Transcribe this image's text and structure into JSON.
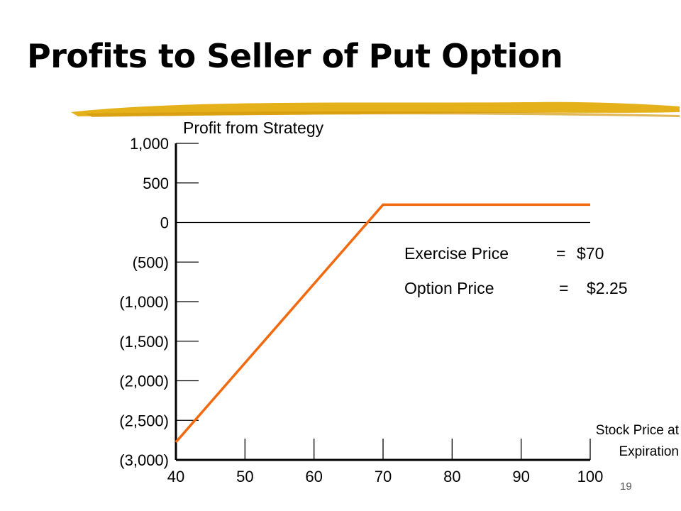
{
  "slide": {
    "title": "Profits to Seller of Put Option",
    "page_number": "19",
    "accent_color": "#E5B11A"
  },
  "chart_data": {
    "type": "line",
    "ylabel": "Profit from Strategy",
    "xlabel": "Stock Price at Expiration",
    "xlabel_lines": [
      "Stock Price at",
      "Expiration"
    ],
    "x_ticks": [
      40,
      50,
      60,
      70,
      80,
      90,
      100
    ],
    "x_tick_labels": [
      "40",
      "50",
      "60",
      "70",
      "80",
      "90",
      "100"
    ],
    "y_ticks": [
      1000,
      500,
      0,
      -500,
      -1000,
      -1500,
      -2000,
      -2500,
      -3000
    ],
    "y_tick_labels": [
      "1,000",
      "500",
      "0",
      "(500)",
      "(1,000)",
      "(1,500)",
      "(2,000)",
      "(2,500)",
      "(3,000)"
    ],
    "xlim": [
      40,
      100
    ],
    "ylim": [
      -3000,
      1000
    ],
    "grid": false,
    "series": [
      {
        "color": "#F26A10",
        "x": [
          40,
          70,
          100
        ],
        "y": [
          -2775,
          225,
          225
        ]
      }
    ],
    "annotations": [
      {
        "label": "Exercise Price",
        "sep": "=",
        "value": "$70"
      },
      {
        "label": "Option Price",
        "sep": "=",
        "value": "$2.25"
      }
    ]
  }
}
